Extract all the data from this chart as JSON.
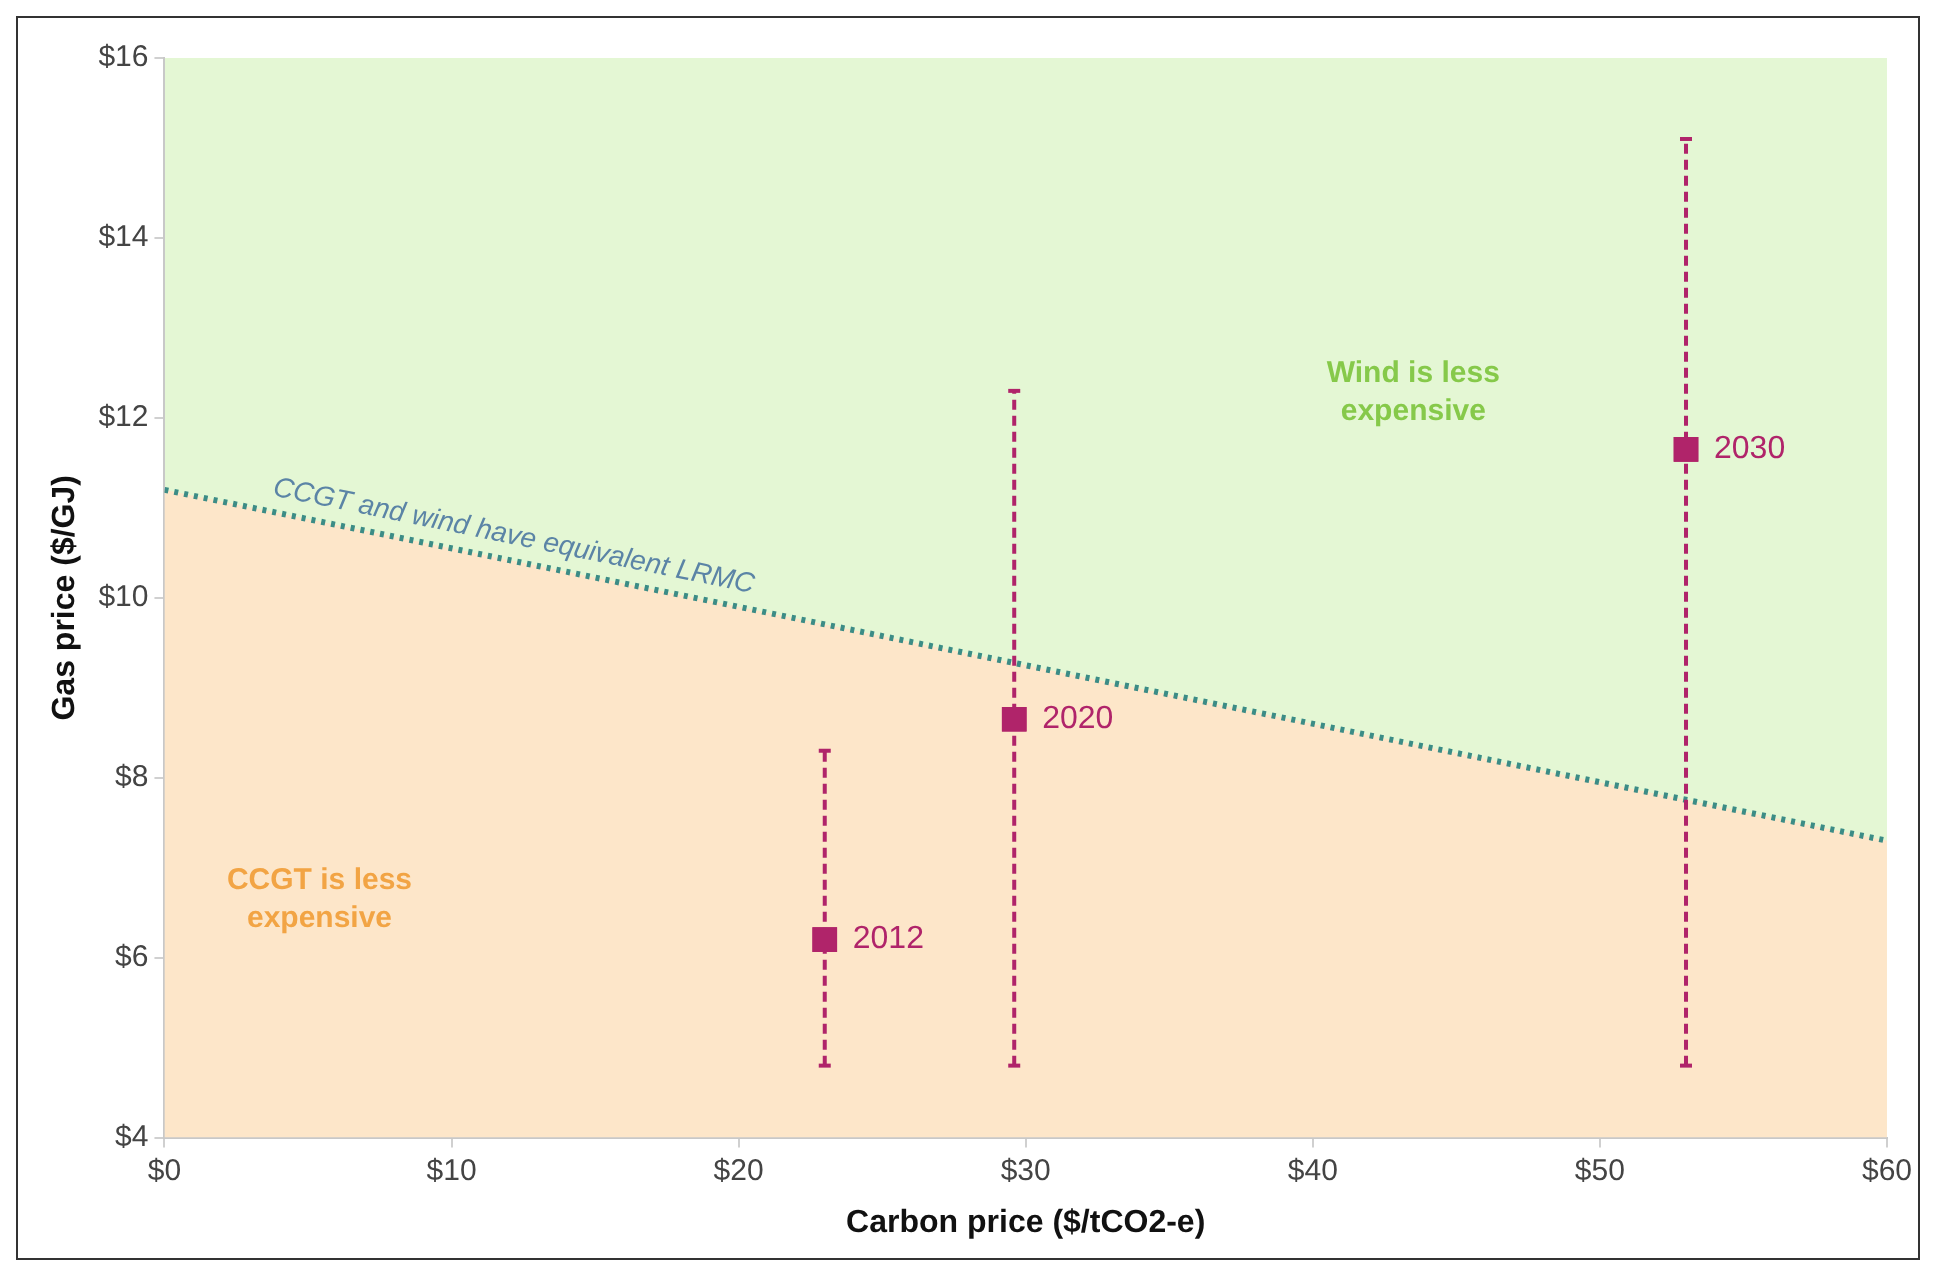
{
  "chart_data": {
    "type": "scatter",
    "xlabel": "Carbon price ($/tCO2-e)",
    "ylabel": "Gas price ($/GJ)",
    "xlim": [
      0,
      60
    ],
    "xticks": [
      {
        "value": 0,
        "label": "$0"
      },
      {
        "value": 10,
        "label": "$10"
      },
      {
        "value": 20,
        "label": "$20"
      },
      {
        "value": 30,
        "label": "$30"
      },
      {
        "value": 40,
        "label": "$40"
      },
      {
        "value": 50,
        "label": "$50"
      },
      {
        "value": 60,
        "label": "$60"
      }
    ],
    "ylim": [
      4,
      16
    ],
    "yticks": [
      {
        "value": 4,
        "label": "$4"
      },
      {
        "value": 6,
        "label": "$6"
      },
      {
        "value": 8,
        "label": "$8"
      },
      {
        "value": 10,
        "label": "$10"
      },
      {
        "value": 12,
        "label": "$12"
      },
      {
        "value": 14,
        "label": "$14"
      },
      {
        "value": 16,
        "label": "$16"
      }
    ],
    "grid": false,
    "legend": false,
    "series": [
      {
        "type": "area",
        "color": "#fde6c9",
        "x": [
          0,
          60
        ],
        "values": [
          11.2,
          7.3
        ]
      },
      {
        "type": "line",
        "color": "#3c8c86",
        "x": [
          0,
          60
        ],
        "values": [
          11.2,
          7.3
        ],
        "marker": "none",
        "line_style": "dotted"
      },
      {
        "color": "#b0246a",
        "x": [
          23,
          29.6,
          53
        ],
        "values": [
          6.2,
          8.65,
          11.65
        ],
        "errors": [
          [
            4.8,
            8.3
          ],
          [
            4.8,
            12.3
          ],
          [
            4.8,
            15.1
          ]
        ],
        "marker": "square"
      }
    ],
    "annotations": [
      "CCGT and wind have equivalent LRMC",
      "Wind is less expensive",
      "CCGT is less expensive",
      {
        "text": "2012",
        "x": 23,
        "y": 6.2
      },
      {
        "text": "2020",
        "x": 29.6,
        "y": 8.65
      },
      {
        "text": "2030",
        "x": 53,
        "y": 11.65
      }
    ]
  }
}
